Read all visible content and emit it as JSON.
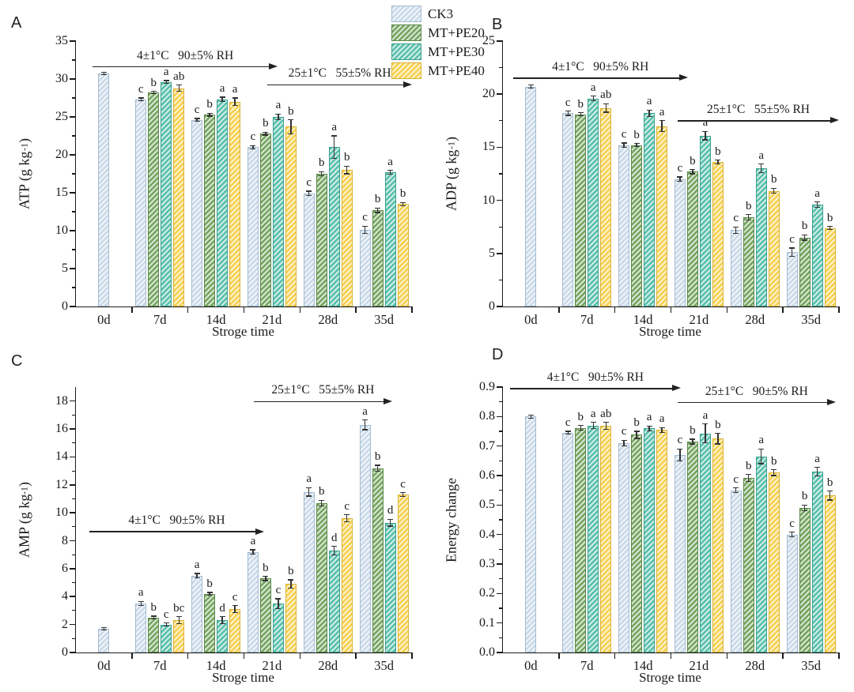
{
  "figure": {
    "legend": [
      {
        "name": "CK3",
        "color": "#c9d9e8",
        "border": "#a4bcd0"
      },
      {
        "name": "MT+PE20",
        "color": "#74a45f",
        "border": "#5a884a"
      },
      {
        "name": "MT+PE30",
        "color": "#57bfab",
        "border": "#3ba08c"
      },
      {
        "name": "MT+PE40",
        "color": "#f6d04e",
        "border": "#d8b237"
      }
    ]
  },
  "chart_data": [
    {
      "panel": "A",
      "type": "bar",
      "ylabel": {
        "prefix": "ATP (g kg",
        "sup": "-1",
        "suffix": ")"
      },
      "xlabel": "Stroge time",
      "ylim": [
        0,
        35
      ],
      "ytick_step": 5,
      "ytick_decimals": 0,
      "categories": [
        "0d",
        "7d",
        "14d",
        "21d",
        "28d",
        "35d"
      ],
      "series": [
        {
          "name": "CK3",
          "values": [
            30.7,
            27.3,
            24.6,
            21.0,
            14.9,
            10.1
          ],
          "errors": [
            0.15,
            0.2,
            0.2,
            0.2,
            0.3,
            0.5
          ],
          "letters": [
            "",
            "c",
            "c",
            "c",
            "c",
            "c"
          ]
        },
        {
          "name": "MT+PE20",
          "values": [
            null,
            28.2,
            25.3,
            22.8,
            17.5,
            12.7
          ],
          "errors": [
            null,
            0.15,
            0.2,
            0.2,
            0.3,
            0.3
          ],
          "letters": [
            "",
            "b",
            "b",
            "b",
            "b",
            "b"
          ]
        },
        {
          "name": "MT+PE30",
          "values": [
            null,
            29.6,
            27.3,
            25.0,
            21.0,
            17.7
          ],
          "errors": [
            null,
            0.2,
            0.3,
            0.4,
            1.5,
            0.25
          ],
          "letters": [
            "",
            "a",
            "a",
            "a",
            "a",
            "a"
          ]
        },
        {
          "name": "MT+PE40",
          "values": [
            null,
            28.8,
            27.0,
            23.7,
            18.0,
            13.5
          ],
          "errors": [
            null,
            0.4,
            0.5,
            0.9,
            0.5,
            0.2
          ],
          "letters": [
            "",
            "ab",
            "a",
            "b",
            "b",
            "b"
          ]
        }
      ],
      "annotations": [
        {
          "label": "4±1°C   90±5% RH",
          "x1": 0.05,
          "x2": 0.6,
          "y": 0.097
        },
        {
          "label": "25±1°C   55±5% RH",
          "x1": 0.57,
          "x2": 1.0,
          "y": 0.165
        }
      ]
    },
    {
      "panel": "B",
      "type": "bar",
      "ylabel": {
        "prefix": "ADP (g kg",
        "sup": "-1",
        "suffix": ")"
      },
      "xlabel": "Stroge time",
      "ylim": [
        0,
        25
      ],
      "ytick_step": 5,
      "ytick_decimals": 0,
      "categories": [
        "0d",
        "7d",
        "14d",
        "21d",
        "28d",
        "35d"
      ],
      "series": [
        {
          "name": "CK3",
          "values": [
            20.7,
            18.2,
            15.2,
            12.0,
            7.2,
            5.1
          ],
          "errors": [
            0.15,
            0.2,
            0.2,
            0.2,
            0.3,
            0.4
          ],
          "letters": [
            "",
            "c",
            "c",
            "c",
            "c",
            "c"
          ]
        },
        {
          "name": "MT+PE20",
          "values": [
            null,
            18.1,
            15.2,
            12.7,
            8.4,
            6.5
          ],
          "errors": [
            null,
            0.15,
            0.15,
            0.2,
            0.25,
            0.25
          ],
          "letters": [
            "",
            "b",
            "b",
            "b",
            "b",
            "b"
          ]
        },
        {
          "name": "MT+PE30",
          "values": [
            null,
            19.6,
            18.2,
            16.1,
            13.0,
            9.6
          ],
          "errors": [
            null,
            0.2,
            0.3,
            0.4,
            0.4,
            0.25
          ],
          "letters": [
            "",
            "a",
            "a",
            "a",
            "a",
            "a"
          ]
        },
        {
          "name": "MT+PE40",
          "values": [
            null,
            18.7,
            17.0,
            13.6,
            10.9,
            7.4
          ],
          "errors": [
            null,
            0.4,
            0.5,
            0.2,
            0.25,
            0.15
          ],
          "letters": [
            "",
            "ab",
            "a",
            "b",
            "b",
            "b"
          ]
        }
      ],
      "annotations": [
        {
          "label": "4±1°C   90±5% RH",
          "x1": 0.03,
          "x2": 0.55,
          "y": 0.14
        },
        {
          "label": "25±1°C   55±5% RH",
          "x1": 0.52,
          "x2": 1.0,
          "y": 0.3
        }
      ]
    },
    {
      "panel": "C",
      "type": "bar",
      "ylabel": {
        "prefix": "AMP (g kg",
        "sup": "-1",
        "suffix": ")"
      },
      "xlabel": "Stroge time",
      "ylim": [
        0,
        19
      ],
      "ytick_step": 2,
      "ytick_decimals": 0,
      "categories": [
        "0d",
        "7d",
        "14d",
        "21d",
        "28d",
        "35d"
      ],
      "series": [
        {
          "name": "CK3",
          "values": [
            1.7,
            3.5,
            5.5,
            7.2,
            11.5,
            16.3
          ],
          "errors": [
            0.1,
            0.15,
            0.15,
            0.15,
            0.3,
            0.35
          ],
          "letters": [
            "",
            "a",
            "a",
            "a",
            "a",
            "a"
          ]
        },
        {
          "name": "MT+PE20",
          "values": [
            null,
            2.5,
            4.2,
            5.3,
            10.7,
            13.2
          ],
          "errors": [
            null,
            0.1,
            0.1,
            0.15,
            0.2,
            0.2
          ],
          "letters": [
            "",
            "b",
            "b",
            "b",
            "b",
            "b"
          ]
        },
        {
          "name": "MT+PE30",
          "values": [
            null,
            2.0,
            2.3,
            3.5,
            7.3,
            9.3
          ],
          "errors": [
            null,
            0.1,
            0.25,
            0.35,
            0.3,
            0.25
          ],
          "letters": [
            "",
            "c",
            "d",
            "c",
            "d",
            "d"
          ]
        },
        {
          "name": "MT+PE40",
          "values": [
            null,
            2.3,
            3.1,
            4.9,
            9.6,
            11.3
          ],
          "errors": [
            null,
            0.25,
            0.25,
            0.3,
            0.25,
            0.15
          ],
          "letters": [
            "",
            "bc",
            "c",
            "b",
            "c",
            "c"
          ]
        }
      ],
      "annotations": [
        {
          "label": "4±1°C   90±5% RH",
          "x1": 0.04,
          "x2": 0.56,
          "y": 0.545
        },
        {
          "label": "25±1°C   55±5% RH",
          "x1": 0.53,
          "x2": 0.94,
          "y": 0.055
        }
      ]
    },
    {
      "panel": "D",
      "type": "bar",
      "ylabel": {
        "prefix": "Energy change",
        "sup": "",
        "suffix": ""
      },
      "xlabel": "Stroge time",
      "ylim": [
        0,
        0.9
      ],
      "ytick_step": 0.1,
      "ytick_decimals": 1,
      "categories": [
        "0d",
        "7d",
        "14d",
        "21d",
        "28d",
        "35d"
      ],
      "series": [
        {
          "name": "CK3",
          "values": [
            0.8,
            0.745,
            0.71,
            0.67,
            0.55,
            0.4
          ],
          "errors": [
            0.005,
            0.005,
            0.01,
            0.02,
            0.008,
            0.008
          ],
          "letters": [
            "",
            "c",
            "c",
            "c",
            "c",
            "c"
          ]
        },
        {
          "name": "MT+PE20",
          "values": [
            null,
            0.762,
            0.738,
            0.715,
            0.592,
            0.49
          ],
          "errors": [
            null,
            0.008,
            0.012,
            0.008,
            0.012,
            0.01
          ],
          "letters": [
            "",
            "b",
            "b",
            "b",
            "b",
            "b"
          ]
        },
        {
          "name": "MT+PE30",
          "values": [
            null,
            0.77,
            0.76,
            0.743,
            0.665,
            0.613
          ],
          "errors": [
            null,
            0.01,
            0.008,
            0.032,
            0.025,
            0.015
          ],
          "letters": [
            "",
            "a",
            "a",
            "a",
            "a",
            "a"
          ]
        },
        {
          "name": "MT+PE40",
          "values": [
            null,
            0.768,
            0.755,
            0.725,
            0.61,
            0.532
          ],
          "errors": [
            null,
            0.012,
            0.008,
            0.018,
            0.01,
            0.015
          ],
          "letters": [
            "",
            "ab",
            "a",
            "b",
            "b",
            "b"
          ]
        }
      ],
      "annotations": [
        {
          "label": "4±1°C   90±5% RH",
          "x1": 0.02,
          "x2": 0.53,
          "y": 0.005
        },
        {
          "label": "25±1°C   90±5% RH",
          "x1": 0.52,
          "x2": 0.99,
          "y": 0.058
        }
      ]
    }
  ]
}
